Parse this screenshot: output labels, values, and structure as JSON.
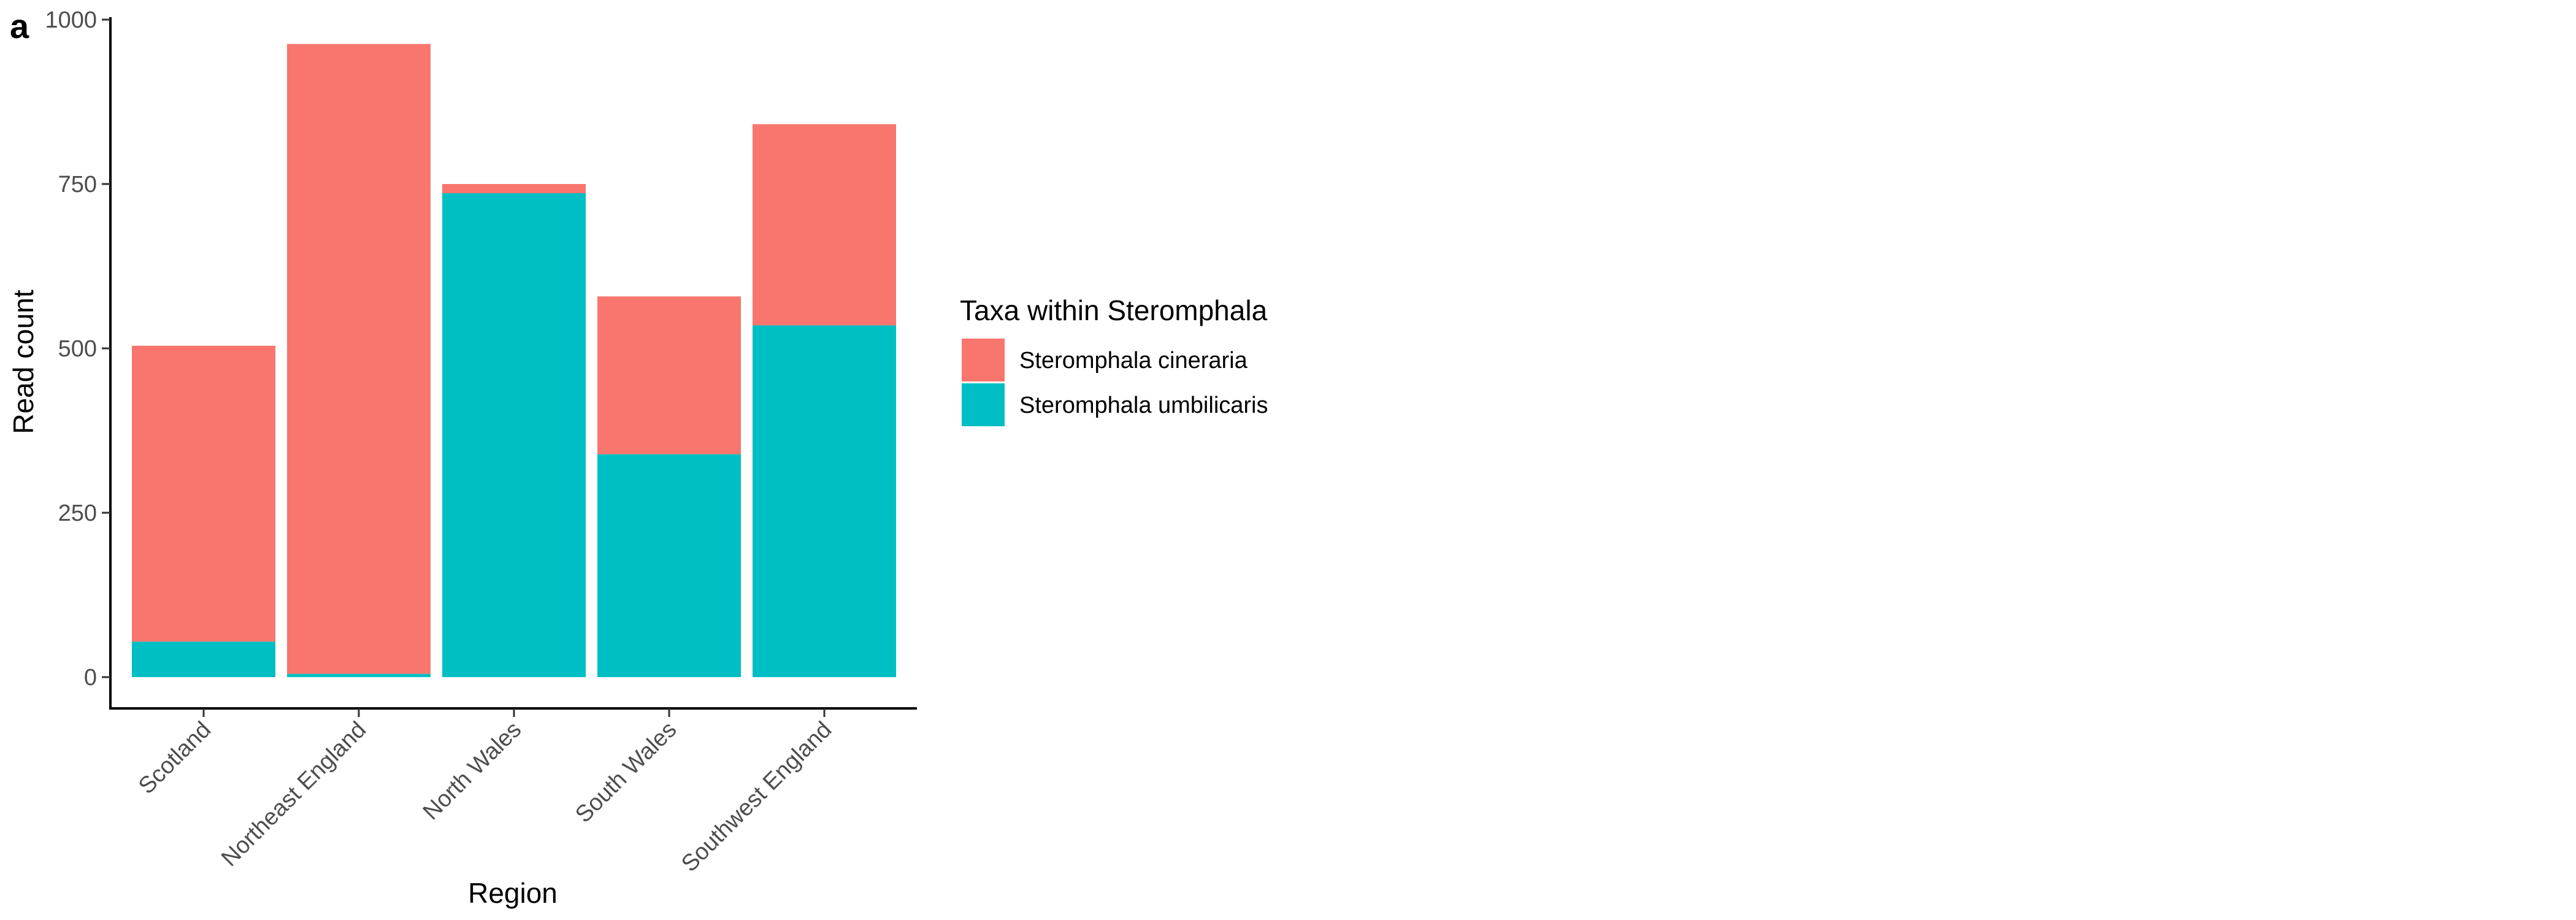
{
  "panel_label": "a",
  "chart_data": {
    "type": "bar",
    "stacked": true,
    "categories": [
      "Scotland",
      "Northeast England",
      "North Wales",
      "South Wales",
      "Southwest England"
    ],
    "series": [
      {
        "name": "Steromphala cineraria",
        "color": "#F8766D",
        "values": [
          450,
          958,
          14,
          240,
          306
        ]
      },
      {
        "name": "Steromphala umbilicaris",
        "color": "#00BFC4",
        "values": [
          54,
          5,
          736,
          339,
          535
        ]
      }
    ],
    "xlabel": "Region",
    "ylabel": "Read count",
    "ylim": [
      0,
      1000
    ],
    "yticks": [
      0,
      250,
      500,
      750,
      1000
    ],
    "grid": false,
    "legend": {
      "title": "Taxa within Steromphala",
      "placement": "right",
      "entries": [
        "Steromphala cineraria",
        "Steromphala umbilicaris"
      ]
    }
  }
}
